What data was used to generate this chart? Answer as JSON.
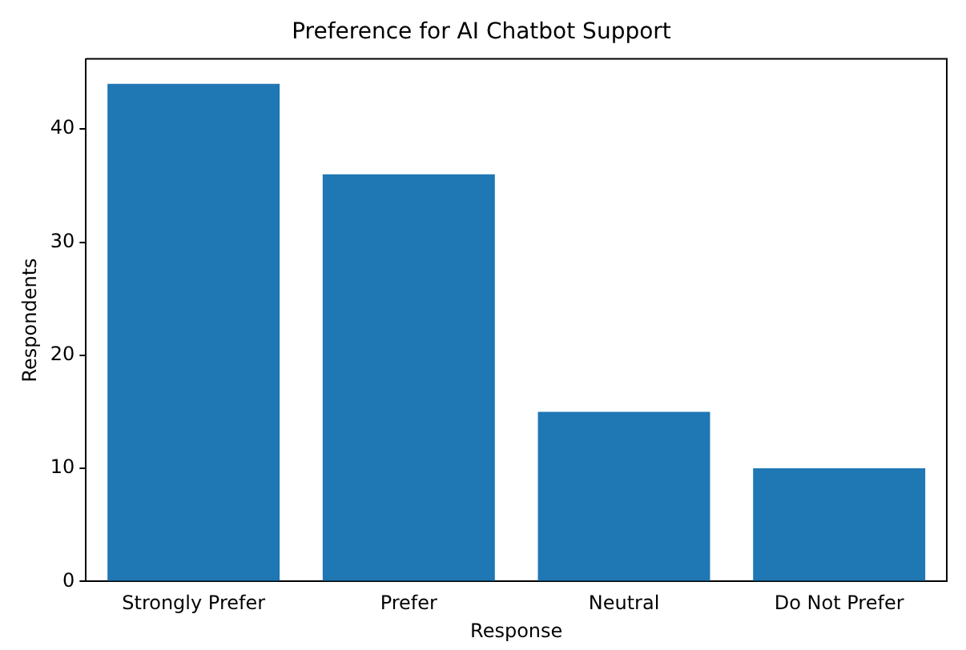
{
  "chart_data": {
    "type": "bar",
    "title": "Preference for AI Chatbot Support",
    "xlabel": "Response",
    "ylabel": "Respondents",
    "categories": [
      "Strongly Prefer",
      "Prefer",
      "Neutral",
      "Do Not Prefer"
    ],
    "values": [
      44,
      36,
      15,
      10
    ],
    "color": "#1f77b4",
    "ylim": [
      0,
      46.2
    ],
    "yticks": [
      0,
      10,
      20,
      30,
      40
    ],
    "grid": false,
    "legend": false
  }
}
